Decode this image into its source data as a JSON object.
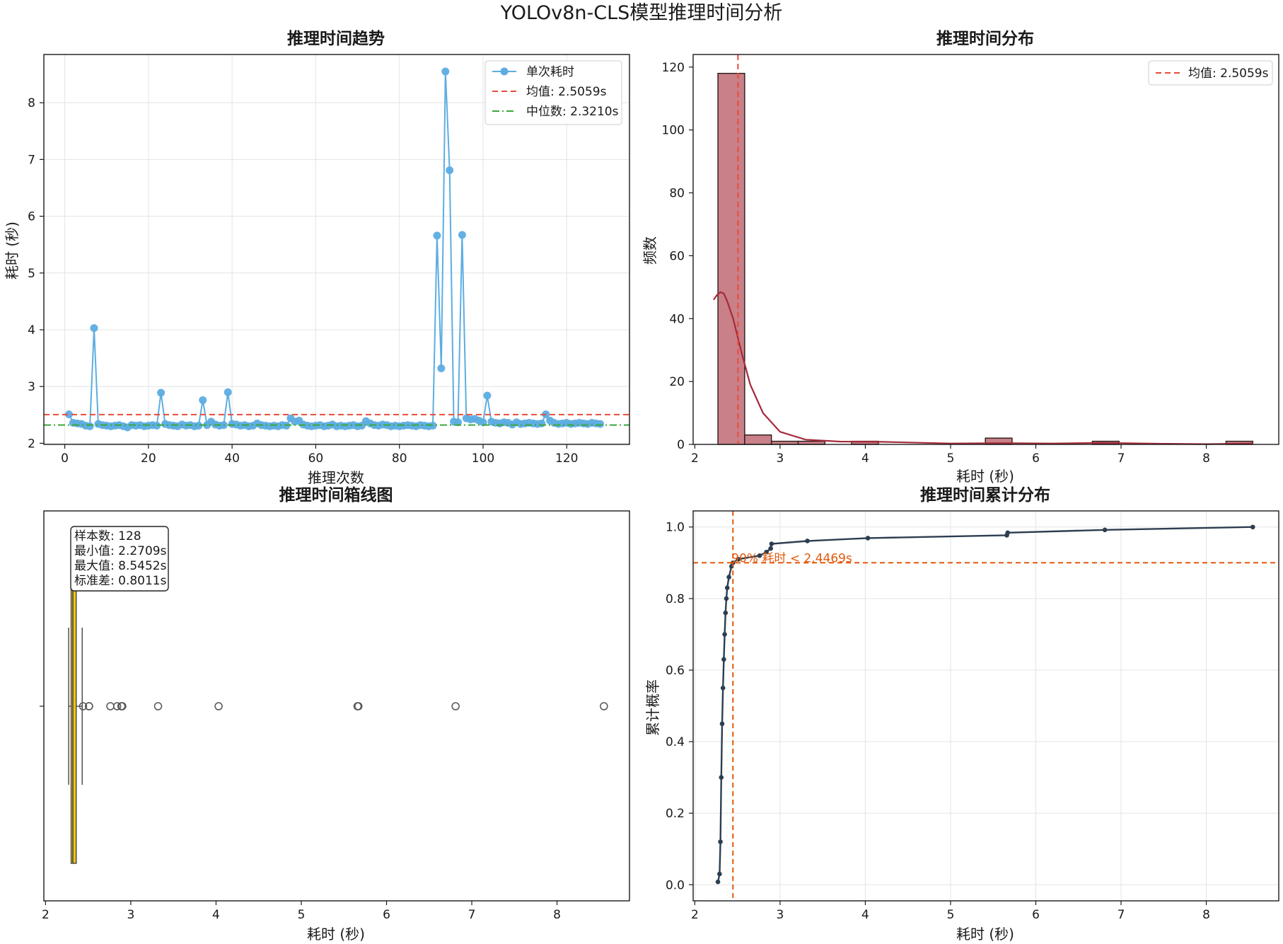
{
  "suptitle": "YOLOv8n-CLS模型推理时间分析",
  "colors": {
    "trend_line": "#5dade2",
    "mean": "#e74c3c",
    "median": "#3aa83a",
    "hist_fill": "#c98088",
    "hist_edge": "#2b1a1a",
    "kde": "#a52a3a",
    "box_fill": "#f1c40f",
    "cdf_line": "#2c3e50",
    "p90": "#e2590c"
  },
  "chart_data": [
    {
      "type": "line",
      "title": "推理时间趋势",
      "xlabel": "推理次数",
      "ylabel": "耗时 (秒)",
      "xlim": [
        -5,
        135
      ],
      "ylim": [
        1.98,
        8.85
      ],
      "xticks": [
        0,
        20,
        40,
        60,
        80,
        100,
        120
      ],
      "yticks": [
        2,
        3,
        4,
        5,
        6,
        7,
        8
      ],
      "grid": true,
      "legend_position": "top-right",
      "series": [
        {
          "name": "单次耗时",
          "x": [
            1,
            2,
            3,
            4,
            5,
            6,
            7,
            8,
            9,
            10,
            11,
            12,
            13,
            14,
            15,
            16,
            17,
            18,
            19,
            20,
            21,
            22,
            23,
            24,
            25,
            26,
            27,
            28,
            29,
            30,
            31,
            32,
            33,
            34,
            35,
            36,
            37,
            38,
            39,
            40,
            41,
            42,
            43,
            44,
            45,
            46,
            47,
            48,
            49,
            50,
            51,
            52,
            53,
            54,
            55,
            56,
            57,
            58,
            59,
            60,
            61,
            62,
            63,
            64,
            65,
            66,
            67,
            68,
            69,
            70,
            71,
            72,
            73,
            74,
            75,
            76,
            77,
            78,
            79,
            80,
            81,
            82,
            83,
            84,
            85,
            86,
            87,
            88,
            89,
            90,
            91,
            92,
            93,
            94,
            95,
            96,
            97,
            98,
            99,
            100,
            101,
            102,
            103,
            104,
            105,
            106,
            107,
            108,
            109,
            110,
            111,
            112,
            113,
            114,
            115,
            116,
            117,
            118,
            119,
            120,
            121,
            122,
            123,
            124,
            125,
            126,
            127,
            128
          ],
          "values": [
            2.51,
            2.36,
            2.35,
            2.34,
            2.31,
            2.3,
            4.03,
            2.34,
            2.32,
            2.31,
            2.3,
            2.31,
            2.32,
            2.3,
            2.28,
            2.32,
            2.31,
            2.32,
            2.3,
            2.31,
            2.32,
            2.31,
            2.89,
            2.34,
            2.32,
            2.31,
            2.3,
            2.33,
            2.31,
            2.32,
            2.3,
            2.31,
            2.76,
            2.32,
            2.38,
            2.33,
            2.31,
            2.32,
            2.9,
            2.34,
            2.33,
            2.31,
            2.32,
            2.3,
            2.31,
            2.35,
            2.32,
            2.31,
            2.3,
            2.31,
            2.3,
            2.32,
            2.31,
            2.44,
            2.38,
            2.4,
            2.33,
            2.31,
            2.3,
            2.31,
            2.32,
            2.3,
            2.31,
            2.33,
            2.3,
            2.31,
            2.3,
            2.31,
            2.32,
            2.3,
            2.31,
            2.39,
            2.35,
            2.32,
            2.31,
            2.33,
            2.32,
            2.3,
            2.31,
            2.3,
            2.31,
            2.32,
            2.31,
            2.3,
            2.32,
            2.31,
            2.3,
            2.31,
            5.66,
            3.32,
            8.55,
            6.81,
            2.38,
            2.37,
            5.67,
            2.44,
            2.42,
            2.43,
            2.4,
            2.37,
            2.84,
            2.38,
            2.36,
            2.35,
            2.37,
            2.36,
            2.33,
            2.37,
            2.34,
            2.35,
            2.36,
            2.35,
            2.34,
            2.35,
            2.51,
            2.4,
            2.36,
            2.34,
            2.35,
            2.36,
            2.34,
            2.35,
            2.36,
            2.35,
            2.34,
            2.36,
            2.35,
            2.34
          ]
        },
        {
          "name": "均值: 2.5059s",
          "value": 2.5059
        },
        {
          "name": "中位数: 2.3210s",
          "value": 2.321
        }
      ]
    },
    {
      "type": "bar",
      "title": "推理时间分布",
      "xlabel": "耗时 (秒)",
      "ylabel": "频数",
      "xlim": [
        1.98,
        8.85
      ],
      "ylim": [
        0,
        124
      ],
      "xticks": [
        2,
        3,
        4,
        5,
        6,
        7,
        8
      ],
      "yticks": [
        0,
        20,
        40,
        60,
        80,
        100,
        120
      ],
      "grid": false,
      "legend_position": "top-right",
      "bins": [
        2.2709,
        2.5846,
        2.8983,
        3.212,
        3.5257,
        3.8394,
        4.1531,
        4.4668,
        4.7806,
        5.0943,
        5.408,
        5.7217,
        6.0354,
        6.3491,
        6.6628,
        6.9765,
        7.2902,
        7.6039,
        7.9176,
        8.2313,
        8.5452
      ],
      "counts": [
        118,
        3,
        1,
        1,
        0,
        1,
        0,
        0,
        0,
        0,
        2,
        0,
        0,
        0,
        1,
        0,
        0,
        0,
        0,
        1
      ],
      "kde_x": [
        2.22,
        2.26,
        2.3,
        2.34,
        2.38,
        2.45,
        2.55,
        2.65,
        2.8,
        3.0,
        3.3,
        3.7,
        4.2,
        5.0,
        5.6,
        6.2,
        6.8,
        7.5,
        8.0,
        8.55
      ],
      "kde_y": [
        46,
        47.5,
        48.4,
        48,
        45.5,
        40,
        29,
        19,
        10,
        4,
        1.5,
        0.9,
        0.8,
        0.3,
        0.4,
        0.3,
        0.5,
        0.2,
        0.1,
        0.3
      ],
      "series": [
        {
          "name": "均值: 2.5059s",
          "value": 2.5059
        }
      ]
    },
    {
      "type": "box",
      "title": "推理时间箱线图",
      "xlabel": "耗时 (秒)",
      "xlim": [
        1.98,
        8.85
      ],
      "xticks": [
        2,
        3,
        4,
        5,
        6,
        7,
        8
      ],
      "grid": false,
      "stats": {
        "whisker_low": 2.2709,
        "q1": 2.3,
        "median": 2.32,
        "q3": 2.36,
        "whisker_high": 2.43
      },
      "outliers": [
        2.44,
        2.51,
        2.51,
        2.76,
        2.84,
        2.89,
        2.9,
        3.32,
        4.03,
        5.66,
        5.67,
        6.81,
        8.55
      ],
      "stats_box_lines": [
        "样本数: 128",
        "最小值: 2.2709s",
        "最大值: 8.5452s",
        "标准差: 0.8011s"
      ]
    },
    {
      "type": "line",
      "title": "推理时间累计分布",
      "xlabel": "耗时 (秒)",
      "ylabel": "累计概率",
      "xlim": [
        1.98,
        8.85
      ],
      "ylim": [
        -0.045,
        1.045
      ],
      "xticks": [
        2,
        3,
        4,
        5,
        6,
        7,
        8
      ],
      "yticks": [
        0.0,
        0.2,
        0.4,
        0.6,
        0.8,
        1.0
      ],
      "ytick_labels": [
        "0.0",
        "0.2",
        "0.4",
        "0.6",
        "0.8",
        "1.0"
      ],
      "grid": true,
      "x": [
        2.2709,
        2.29,
        2.3,
        2.31,
        2.32,
        2.33,
        2.34,
        2.35,
        2.36,
        2.37,
        2.38,
        2.4,
        2.43,
        2.4469,
        2.51,
        2.76,
        2.84,
        2.89,
        2.9,
        3.32,
        4.03,
        5.66,
        5.67,
        6.81,
        8.5452
      ],
      "values": [
        0.008,
        0.03,
        0.12,
        0.3,
        0.45,
        0.55,
        0.63,
        0.7,
        0.76,
        0.8,
        0.83,
        0.86,
        0.89,
        0.9,
        0.91,
        0.92,
        0.93,
        0.94,
        0.953,
        0.961,
        0.969,
        0.977,
        0.984,
        0.992,
        1.0
      ],
      "p90_x": 2.4469,
      "p90_y": 0.9,
      "annotation": "90% 耗时 < 2.4469s"
    }
  ]
}
